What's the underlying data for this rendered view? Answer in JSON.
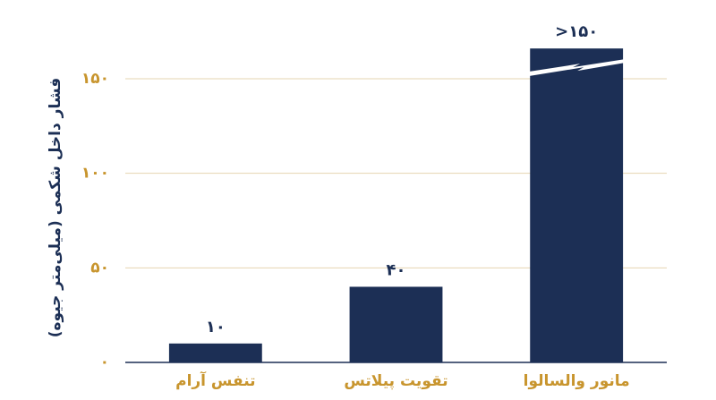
{
  "chart_data": {
    "type": "bar",
    "y_label": "فشار داخل شکمی (میلی‌متر جیوه)",
    "categories": [
      "تنفس آرام",
      "تقویت پیلاتس",
      "مانور والسالوا"
    ],
    "values": [
      10,
      40,
      166
    ],
    "value_labels": [
      "۱۰",
      "۴۰",
      ">۱۵۰"
    ],
    "color": "#1c2f55",
    "ylim": [
      0,
      172
    ],
    "yticks": [
      {
        "value": 0,
        "label": "۰"
      },
      {
        "value": 50,
        "label": "۵۰"
      },
      {
        "value": 100,
        "label": "۱۰۰"
      },
      {
        "value": 150,
        "label": "۱۵۰"
      }
    ],
    "grid": true
  }
}
